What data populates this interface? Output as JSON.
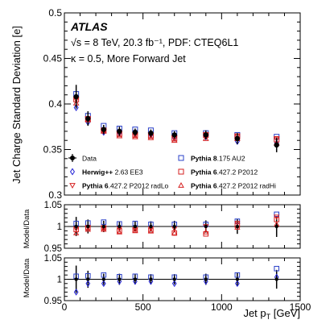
{
  "chart_data": {
    "type": "scatter",
    "x_label_main": "Jet p",
    "x_label_sub": "T",
    "x_label_unit": " [GeV]",
    "y_label": "Jet Charge Standard Deviation [e]",
    "ratio_label": "Model/Data",
    "xlim": [
      0,
      1500
    ],
    "x_ticks": [
      "0",
      "500",
      "1000",
      "1500"
    ],
    "main_ylim": [
      0.3,
      0.5
    ],
    "main_y_ticks": [
      "0.3",
      "0.35",
      "0.4",
      "0.45",
      "0.5"
    ],
    "ratio_ylim": [
      0.95,
      1.05
    ],
    "ratio_y_ticks": [
      "0.95",
      "1",
      "1.05"
    ],
    "grid": false,
    "annotations": {
      "experiment": "ATLAS",
      "line1": "√s = 8 TeV, 20.3 fb⁻¹, PDF: CTEQ6L1",
      "line2": "κ = 0.5, More Forward Jet"
    },
    "colors": {
      "data": "#000000",
      "herwig": "#1f1fd6",
      "pythia8": "#2a40c8",
      "pythia6": "#d62020"
    },
    "x": [
      75,
      150,
      250,
      350,
      450,
      550,
      700,
      900,
      1100,
      1350
    ],
    "series": [
      {
        "name": "Data",
        "marker": "circle-filled",
        "color": "#000000",
        "values": [
          0.408,
          0.384,
          0.372,
          0.37,
          0.369,
          0.368,
          0.366,
          0.366,
          0.362,
          0.355
        ],
        "errors": [
          0.013,
          0.008,
          0.005,
          0.005,
          0.004,
          0.004,
          0.004,
          0.005,
          0.006,
          0.008
        ]
      },
      {
        "name": "Pythia 8.175 AU2",
        "marker": "square-open",
        "color": "#2a40c8",
        "values": [
          0.411,
          0.387,
          0.376,
          0.373,
          0.372,
          0.371,
          0.368,
          0.368,
          0.366,
          0.364
        ],
        "ratio1": [
          1.007,
          1.008,
          1.01,
          1.006,
          1.007,
          1.005,
          1.005,
          1.005,
          1.012,
          1.028
        ],
        "ratio2": [
          1.007,
          1.008,
          1.01,
          1.006,
          1.007,
          1.005,
          1.005,
          1.005,
          1.01,
          1.025
        ]
      },
      {
        "name": "Herwig++ 2.63 EE3",
        "marker": "diamond-open",
        "color": "#1f1fd6",
        "values": [
          0.396,
          0.38,
          0.369,
          0.368,
          0.367,
          0.366,
          0.363,
          0.364,
          0.359,
          0.357
        ],
        "ratio2": [
          0.97,
          0.99,
          0.99,
          0.995,
          0.995,
          0.995,
          0.99,
          0.995,
          0.99,
          1.005
        ]
      },
      {
        "name": "Pythia 6.427.2 P2012",
        "marker": "square-open",
        "color": "#d62020",
        "values": [
          0.405,
          0.383,
          0.371,
          0.367,
          0.366,
          0.365,
          0.362,
          0.366,
          0.364,
          0.361
        ],
        "ratio1": [
          0.993,
          0.997,
          0.997,
          0.99,
          0.991,
          0.991,
          0.985,
          0.983,
          1.003,
          1.016
        ]
      },
      {
        "name": "Pythia 6.427.2 P2012 radLo",
        "marker": "triangle-down-open",
        "color": "#d62020",
        "values": [
          0.405,
          0.384,
          0.37,
          0.368,
          0.366,
          0.366,
          0.363,
          0.366,
          0.365,
          0.362
        ],
        "ratio1": [
          0.995,
          0.998,
          0.996,
          0.995,
          0.993,
          0.995,
          0.995,
          1.0,
          1.008,
          1.022
        ]
      },
      {
        "name": "Pythia 6.427.2 P2012 radHi",
        "marker": "triangle-up-open",
        "color": "#d62020",
        "values": [
          0.401,
          0.383,
          0.37,
          0.365,
          0.364,
          0.363,
          0.36,
          0.362,
          0.362,
          0.357
        ],
        "ratio1": [
          0.985,
          0.993,
          0.993,
          0.987,
          0.99,
          0.989,
          0.985,
          0.987,
          0.998,
          1.005
        ]
      }
    ],
    "ratio1_errors": [
      0.022,
      0.016,
      0.013,
      0.012,
      0.012,
      0.012,
      0.013,
      0.014,
      0.017,
      0.024
    ],
    "ratio2_errors": [
      0.032,
      0.02,
      0.013,
      0.013,
      0.012,
      0.012,
      0.012,
      0.013,
      0.015,
      0.022
    ],
    "legend": {
      "placement": "bottom",
      "entries": [
        {
          "bold": "",
          "rest": "Data"
        },
        {
          "bold": "Pythia 8",
          "rest": ".175 AU2"
        },
        {
          "bold": "Herwig++",
          "rest": " 2.63 EE3"
        },
        {
          "bold": "Pythia 6",
          "rest": ".427.2 P2012"
        },
        {
          "bold": "Pythia 6",
          "rest": ".427.2 P2012 radLo"
        },
        {
          "bold": "Pythia 6",
          "rest": ".427.2 P2012 radHi"
        }
      ]
    }
  }
}
